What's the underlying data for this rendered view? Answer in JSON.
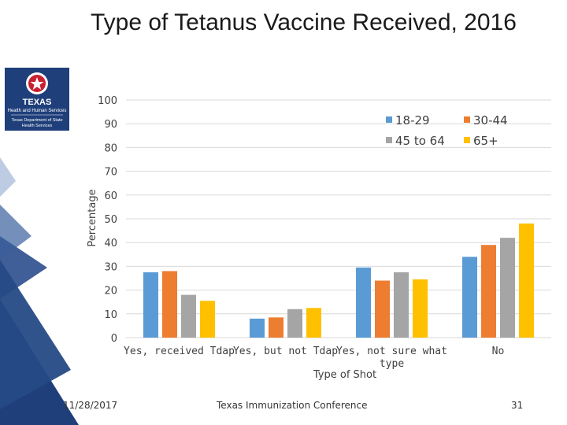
{
  "title": "Type of Tetanus Vaccine Received, 2016",
  "logo": {
    "org": "TEXAS",
    "org_sub": "Health and Human Services",
    "dept_line1": "Texas Department of State",
    "dept_line2": "Health Services"
  },
  "footer": {
    "date": "11/28/2017",
    "conference": "Texas Immunization Conference",
    "page": "31"
  },
  "colors": {
    "sidebar": "#1f3f7a",
    "s1": "#5b9bd5",
    "s2": "#ed7d31",
    "s3": "#a5a5a5",
    "s4": "#ffc000"
  },
  "chart_data": {
    "type": "bar",
    "title": "",
    "xlabel": "Type of Shot",
    "ylabel": "Percentage",
    "ylim": [
      0,
      100
    ],
    "yticks": [
      0,
      10,
      20,
      30,
      40,
      50,
      60,
      70,
      80,
      90,
      100
    ],
    "grid": true,
    "legend": "top-right",
    "categories": [
      "Yes, received Tdap",
      "Yes, but not Tdap",
      "Yes, not sure what type",
      "No"
    ],
    "series": [
      {
        "name": "18-29",
        "color": "#5b9bd5",
        "values": [
          27.5,
          8,
          29.5,
          34
        ]
      },
      {
        "name": "30-44",
        "color": "#ed7d31",
        "values": [
          28,
          8.5,
          24,
          39
        ]
      },
      {
        "name": "45 to 64",
        "color": "#a5a5a5",
        "values": [
          18,
          12,
          27.5,
          42
        ]
      },
      {
        "name": "65+",
        "color": "#ffc000",
        "values": [
          15.5,
          12.5,
          24.5,
          48
        ]
      }
    ]
  }
}
